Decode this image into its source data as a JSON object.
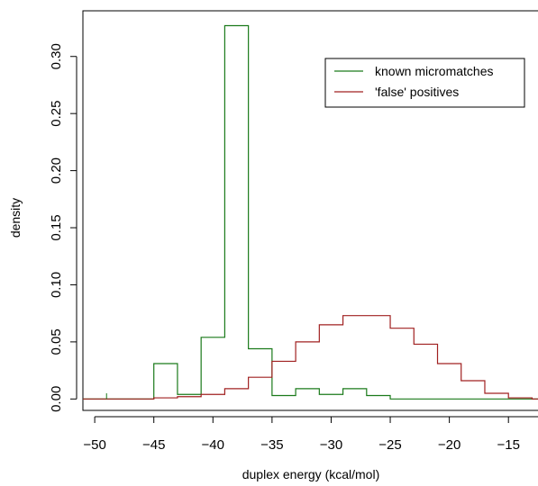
{
  "chart_data": {
    "type": "histogram-step",
    "title": "",
    "xlabel": "duplex energy (kcal/mol)",
    "ylabel": "density",
    "xlim": [
      -51,
      -12.5
    ],
    "ylim": [
      -0.01,
      0.34
    ],
    "xticks": [
      -50,
      -45,
      -40,
      -35,
      -30,
      -25,
      -20,
      -15
    ],
    "xtick_labels": [
      "−50",
      "−45",
      "−40",
      "−35",
      "−30",
      "−25",
      "−20",
      "−15"
    ],
    "yticks": [
      0.0,
      0.05,
      0.1,
      0.15,
      0.2,
      0.25,
      0.3
    ],
    "ytick_labels": [
      "0.00",
      "0.05",
      "0.10",
      "0.15",
      "0.20",
      "0.25",
      "0.30"
    ],
    "legend_position": "top-right",
    "series": [
      {
        "name": "known micromatches",
        "color": "#1a7a1a",
        "edges": [
          -51,
          -49,
          -47,
          -45,
          -43,
          -41,
          -39,
          -37,
          -35,
          -33,
          -31,
          -29,
          -27,
          -25,
          -23,
          -21,
          -19,
          -17,
          -15,
          -13,
          -12.5
        ],
        "values": [
          0.0,
          0.0,
          0.0,
          0.031,
          0.004,
          0.054,
          0.327,
          0.044,
          0.003,
          0.009,
          0.004,
          0.009,
          0.003,
          0.0,
          0.0,
          0.0,
          0.0,
          0.0,
          0.0,
          0.0
        ]
      },
      {
        "name": "'false' positives",
        "color": "#a02020",
        "edges": [
          -51,
          -49,
          -47,
          -45,
          -43,
          -41,
          -39,
          -37,
          -35,
          -33,
          -31,
          -29,
          -27,
          -25,
          -23,
          -21,
          -19,
          -17,
          -15,
          -13,
          -12.5
        ],
        "values": [
          0.0,
          0.0,
          0.0,
          0.001,
          0.002,
          0.004,
          0.009,
          0.019,
          0.033,
          0.05,
          0.065,
          0.073,
          0.073,
          0.062,
          0.048,
          0.031,
          0.016,
          0.005,
          0.001,
          0.0
        ]
      }
    ],
    "annotation_mark": {
      "x": -49,
      "y": 0.005
    }
  }
}
